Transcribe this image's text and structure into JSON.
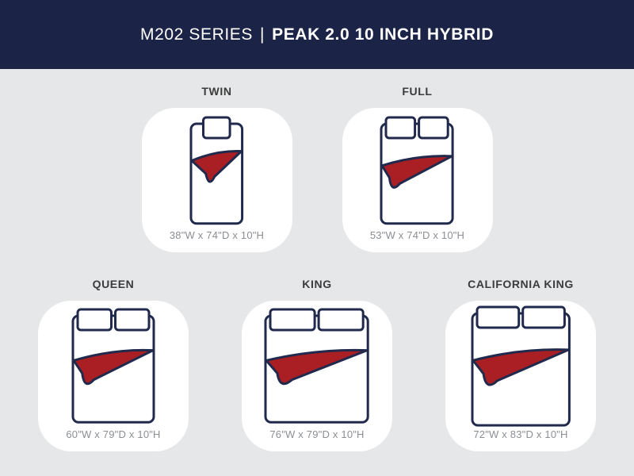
{
  "title": "M202 SERIES | PEAK 2.0 10 INCH HYBRID",
  "header": {
    "series": "M202 SERIES",
    "divider": "|",
    "product": "PEAK 2.0 10 INCH HYBRID"
  },
  "sizes": [
    {
      "id": "twin",
      "label": "TWIN",
      "dimensions": "38\"W x 74\"D x 10\"H",
      "width_in": 38,
      "depth_in": 74,
      "height_in": 10,
      "pillows": 1
    },
    {
      "id": "full",
      "label": "FULL",
      "dimensions": "53\"W x 74\"D x 10\"H",
      "width_in": 53,
      "depth_in": 74,
      "height_in": 10,
      "pillows": 2
    },
    {
      "id": "queen",
      "label": "QUEEN",
      "dimensions": "60\"W x 79\"D x 10\"H",
      "width_in": 60,
      "depth_in": 79,
      "height_in": 10,
      "pillows": 2
    },
    {
      "id": "king",
      "label": "KING",
      "dimensions": "76\"W x 79\"D x 10\"H",
      "width_in": 76,
      "depth_in": 79,
      "height_in": 10,
      "pillows": 2
    },
    {
      "id": "california-king",
      "label": "CALIFORNIA KING",
      "dimensions": "72\"W x 83\"D x 10\"H",
      "width_in": 72,
      "depth_in": 83,
      "height_in": 10,
      "pillows": 2
    }
  ],
  "colors": {
    "header_bg": "#1b2347",
    "outline_navy": "#212a4d",
    "blanket_red": "#a91f24",
    "page_bg": "#e6e7e8",
    "card_bg": "#ffffff",
    "size_label": "#3b3b3b",
    "dimensions_text": "#8b8e93",
    "header_text": "#ffffff"
  }
}
